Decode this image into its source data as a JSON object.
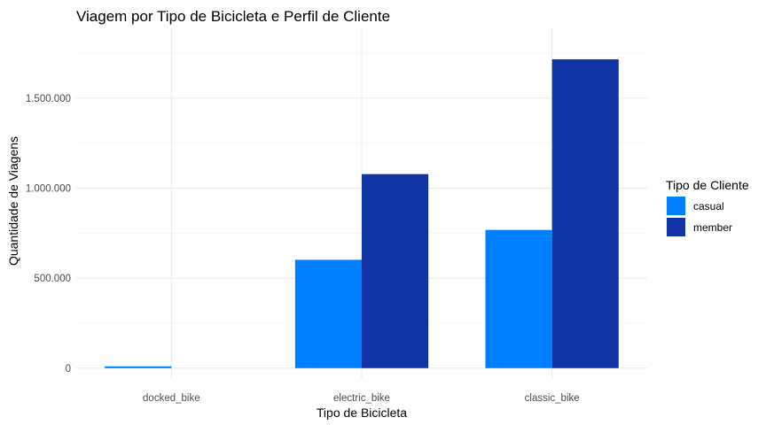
{
  "chart_data": {
    "type": "bar",
    "title": "Viagem por Tipo de Bicicleta e Perfil de Cliente",
    "xlabel": "Tipo de Bicicleta",
    "ylabel": "Quantidade de Viagens",
    "categories": [
      "docked_bike",
      "electric_bike",
      "classic_bike"
    ],
    "series": [
      {
        "name": "casual",
        "color": "#0080FF",
        "values": [
          10000,
          602000,
          768000
        ]
      },
      {
        "name": "member",
        "color": "#1034A6",
        "values": [
          0,
          1078000,
          1716000
        ]
      }
    ],
    "ylim": [
      -60000,
      1888000
    ],
    "y_ticks": [
      0,
      500000,
      1000000,
      1500000
    ],
    "y_tick_labels": [
      "0",
      "500.000",
      "1.000.000",
      "1.500.000"
    ],
    "grid": true,
    "legend_title": "Tipo de Cliente",
    "legend_position": "right"
  }
}
